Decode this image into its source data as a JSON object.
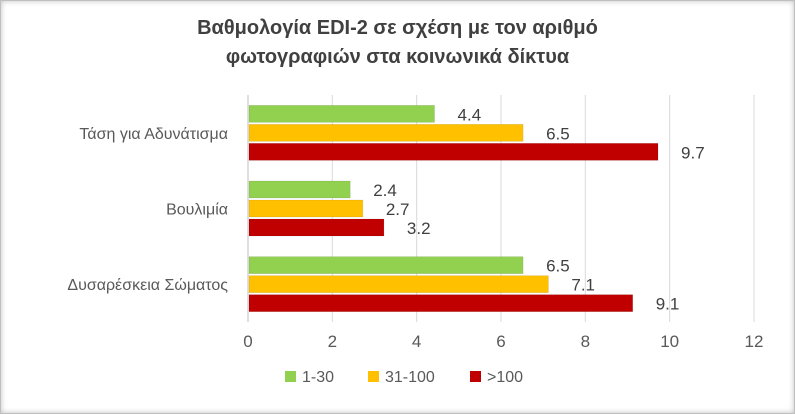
{
  "chart_data": {
    "type": "bar",
    "orientation": "horizontal",
    "title": [
      "Βαθμολογία EDI-2 σε σχέση με τον αριθμό",
      "φωτογραφιών στα κοινωνικά δίκτυα"
    ],
    "categories": [
      "Τάση για Αδυνάτισμα",
      "Βουλιμία",
      "Δυσαρέσκεια Σώματος"
    ],
    "series": [
      {
        "name": "1-30",
        "color": "#92D050",
        "values": [
          4.4,
          2.4,
          6.5
        ]
      },
      {
        "name": "31-100",
        "color": "#FFC000",
        "values": [
          6.5,
          2.7,
          7.1
        ]
      },
      {
        "name": ">100",
        "color": "#C00000",
        "values": [
          9.7,
          3.2,
          9.1
        ]
      }
    ],
    "xlim": [
      0,
      12
    ],
    "xticks": [
      0,
      2,
      4,
      6,
      8,
      10,
      12
    ],
    "xlabel": "",
    "ylabel": "",
    "grid": "vertical",
    "legend_position": "bottom"
  }
}
